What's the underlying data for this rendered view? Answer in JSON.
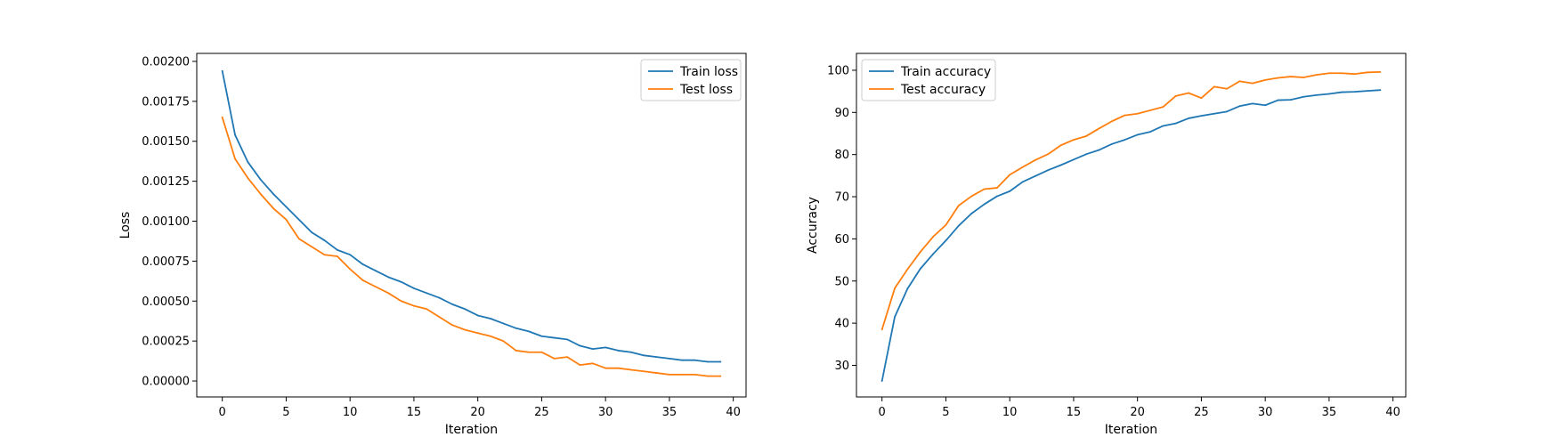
{
  "chart_data": [
    {
      "type": "line",
      "title": "",
      "xlabel": "Iteration",
      "ylabel": "Loss",
      "xlim": [
        -2,
        41
      ],
      "ylim": [
        -0.0001,
        0.00205
      ],
      "xticks": [
        0,
        5,
        10,
        15,
        20,
        25,
        30,
        35,
        40
      ],
      "xtick_labels": [
        "0",
        "5",
        "10",
        "15",
        "20",
        "25",
        "30",
        "35",
        "40"
      ],
      "yticks": [
        0,
        0.00025,
        0.0005,
        0.00075,
        0.001,
        0.00125,
        0.0015,
        0.00175,
        0.002
      ],
      "ytick_labels": [
        "0.00000",
        "0.00025",
        "0.00050",
        "0.00075",
        "0.00100",
        "0.00125",
        "0.00150",
        "0.00175",
        "0.00200"
      ],
      "grid": false,
      "legend_position": "top-right",
      "x": [
        0,
        1,
        2,
        3,
        4,
        5,
        6,
        7,
        8,
        9,
        10,
        11,
        12,
        13,
        14,
        15,
        16,
        17,
        18,
        19,
        20,
        21,
        22,
        23,
        24,
        25,
        26,
        27,
        28,
        29,
        30,
        31,
        32,
        33,
        34,
        35,
        36,
        37,
        38,
        39
      ],
      "series": [
        {
          "name": "Train loss",
          "color": "#1f77b4",
          "values": [
            0.00194,
            0.00154,
            0.00137,
            0.00126,
            0.00117,
            0.00109,
            0.00101,
            0.00093,
            0.00088,
            0.00082,
            0.00079,
            0.00073,
            0.00069,
            0.00065,
            0.00062,
            0.00058,
            0.00055,
            0.00052,
            0.00048,
            0.00045,
            0.00041,
            0.00039,
            0.00036,
            0.00033,
            0.00031,
            0.00028,
            0.00027,
            0.00026,
            0.00022,
            0.0002,
            0.00021,
            0.00019,
            0.00018,
            0.00016,
            0.00015,
            0.00014,
            0.00013,
            0.00013,
            0.00012,
            0.00012
          ]
        },
        {
          "name": "Test loss",
          "color": "#ff7f0e",
          "values": [
            0.00165,
            0.00139,
            0.00127,
            0.00117,
            0.00108,
            0.00101,
            0.00089,
            0.00084,
            0.00079,
            0.00078,
            0.0007,
            0.00063,
            0.00059,
            0.00055,
            0.0005,
            0.00047,
            0.00045,
            0.0004,
            0.00035,
            0.00032,
            0.0003,
            0.00028,
            0.00025,
            0.00019,
            0.00018,
            0.00018,
            0.00014,
            0.00015,
            0.0001,
            0.00011,
            8e-05,
            8e-05,
            7e-05,
            6e-05,
            5e-05,
            4e-05,
            4e-05,
            4e-05,
            3e-05,
            3e-05
          ]
        }
      ]
    },
    {
      "type": "line",
      "title": "",
      "xlabel": "Iteration",
      "ylabel": "Accuracy",
      "xlim": [
        -2,
        41
      ],
      "ylim": [
        22.5,
        104
      ],
      "xticks": [
        0,
        5,
        10,
        15,
        20,
        25,
        30,
        35,
        40
      ],
      "xtick_labels": [
        "0",
        "5",
        "10",
        "15",
        "20",
        "25",
        "30",
        "35",
        "40"
      ],
      "yticks": [
        30,
        40,
        50,
        60,
        70,
        80,
        90,
        100
      ],
      "ytick_labels": [
        "30",
        "40",
        "50",
        "60",
        "70",
        "80",
        "90",
        "100"
      ],
      "grid": false,
      "legend_position": "top-left",
      "x": [
        0,
        1,
        2,
        3,
        4,
        5,
        6,
        7,
        8,
        9,
        10,
        11,
        12,
        13,
        14,
        15,
        16,
        17,
        18,
        19,
        20,
        21,
        22,
        23,
        24,
        25,
        26,
        27,
        28,
        29,
        30,
        31,
        32,
        33,
        34,
        35,
        36,
        37,
        38,
        39
      ],
      "series": [
        {
          "name": "Train accuracy",
          "color": "#1f77b4",
          "values": [
            26.3,
            41.5,
            48.2,
            52.9,
            56.4,
            59.6,
            63.1,
            66.0,
            68.2,
            70.1,
            71.3,
            73.5,
            74.9,
            76.3,
            77.5,
            78.8,
            80.1,
            81.1,
            82.5,
            83.5,
            84.7,
            85.4,
            86.8,
            87.4,
            88.6,
            89.2,
            89.7,
            90.2,
            91.5,
            92.1,
            91.7,
            92.9,
            93.0,
            93.7,
            94.1,
            94.4,
            94.8,
            94.9,
            95.1,
            95.3
          ]
        },
        {
          "name": "Test accuracy",
          "color": "#ff7f0e",
          "values": [
            38.5,
            48.3,
            52.8,
            56.9,
            60.5,
            63.3,
            67.9,
            70.1,
            71.8,
            72.1,
            75.2,
            77.0,
            78.7,
            80.1,
            82.2,
            83.5,
            84.4,
            86.2,
            87.9,
            89.3,
            89.7,
            90.5,
            91.3,
            93.9,
            94.6,
            93.4,
            96.1,
            95.6,
            97.4,
            96.9,
            97.7,
            98.2,
            98.5,
            98.3,
            98.9,
            99.3,
            99.3,
            99.1,
            99.5,
            99.6
          ]
        }
      ]
    }
  ]
}
